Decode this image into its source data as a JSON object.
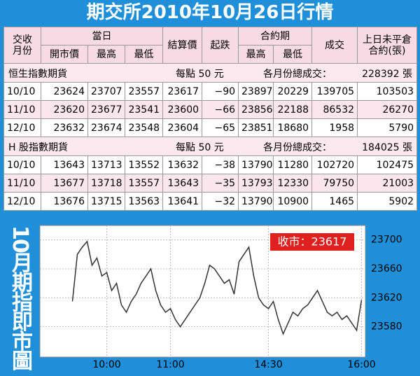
{
  "header": {
    "title": "期交所2010年10月26日行情"
  },
  "table": {
    "header_top": [
      [
        "交收",
        "月份"
      ],
      "當日",
      "結算價",
      "起跌",
      "合約期",
      "成交",
      [
        "上日未平倉",
        "合約(張)"
      ]
    ],
    "header_sub": [
      "開市價",
      "最高",
      "最低",
      "最高",
      "最低"
    ],
    "sections": [
      {
        "name": "恒生指數期貨",
        "note": "每點 50 元",
        "total_label": "各月份總成交：",
        "total": "228392 張",
        "rows": [
          [
            "10/10",
            "23624",
            "23707",
            "23557",
            "23617",
            "−90",
            "23897",
            "20229",
            "139705",
            "103503"
          ],
          [
            "11/10",
            "23620",
            "23677",
            "23541",
            "23600",
            "−66",
            "23856",
            "22188",
            "86532",
            "26270"
          ],
          [
            "12/10",
            "23632",
            "23674",
            "23548",
            "23604",
            "−65",
            "23851",
            "18680",
            "1958",
            "5790"
          ]
        ]
      },
      {
        "name": "H 股指數期貨",
        "note": "每點 50 元",
        "total_label": "各月份總成交：",
        "total": "184025 張",
        "rows": [
          [
            "10/10",
            "13643",
            "13713",
            "13552",
            "13632",
            "−38",
            "13790",
            "11280",
            "102720",
            "102475"
          ],
          [
            "11/10",
            "13677",
            "13718",
            "13557",
            "13643",
            "−35",
            "13793",
            "12330",
            "79750",
            "21003"
          ],
          [
            "12/10",
            "13676",
            "13715",
            "13563",
            "13641",
            "−32",
            "13790",
            "10900",
            "1465",
            "5902"
          ]
        ]
      }
    ]
  },
  "chart_data": {
    "type": "line",
    "title": "10月期指即市圖",
    "annotation": "收市：23617",
    "color": "#333333",
    "grid": true,
    "categories": [
      null,
      null,
      null,
      null,
      null,
      null,
      null,
      "10:00",
      null,
      null,
      null,
      null,
      null,
      null,
      null,
      null,
      null,
      null,
      null,
      null,
      "11:00",
      null,
      null,
      null,
      null,
      null,
      null,
      null,
      null,
      null,
      null,
      null,
      null,
      null,
      null,
      null,
      null,
      null,
      null,
      null,
      "14:30",
      null,
      null,
      null,
      null,
      null,
      null,
      null,
      null,
      null,
      null,
      null,
      null,
      null,
      null,
      null,
      null,
      null,
      null,
      "16:00"
    ],
    "values": [
      23615,
      23680,
      23690,
      23698,
      23665,
      23675,
      23650,
      23655,
      23630,
      23640,
      23610,
      23600,
      23615,
      23625,
      23640,
      23650,
      23660,
      23630,
      23610,
      23600,
      23605,
      23590,
      23580,
      23590,
      23600,
      23610,
      23620,
      23640,
      23665,
      23660,
      23650,
      23640,
      23645,
      23625,
      23670,
      23680,
      23690,
      23650,
      23620,
      23610,
      23605,
      23615,
      23590,
      23570,
      23585,
      23600,
      23595,
      23605,
      23610,
      23620,
      23630,
      23615,
      23600,
      23595,
      23600,
      23590,
      23595,
      23585,
      23575,
      23617
    ],
    "ylim": [
      23538,
      23720
    ],
    "yticks": [
      23580,
      23620,
      23660,
      23700
    ]
  }
}
